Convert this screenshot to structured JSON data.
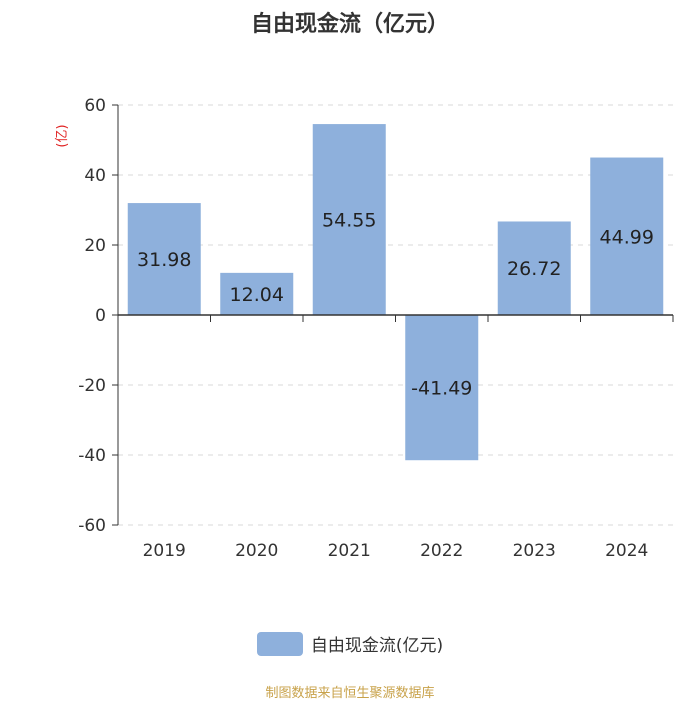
{
  "chart_data": {
    "type": "bar",
    "title": "自由现金流（亿元）",
    "ylabel": "(亿)",
    "categories": [
      "2019",
      "2020",
      "2021",
      "2022",
      "2023",
      "2024"
    ],
    "series": [
      {
        "name": "自由现金流(亿元)",
        "values": [
          31.98,
          12.04,
          54.55,
          -41.49,
          26.72,
          44.99
        ]
      }
    ],
    "data_labels": [
      "31.98",
      "12.04",
      "54.55",
      "-41.49",
      "26.72",
      "44.99"
    ],
    "ylim": [
      -60,
      60
    ],
    "yticks": [
      60,
      40,
      20,
      0,
      -20,
      -40,
      -60
    ],
    "ytick_labels": [
      "60",
      "40",
      "20",
      "0",
      "-20",
      "-40",
      "-60"
    ],
    "grid": true,
    "legend_position": "bottom",
    "bar_color": "#8eb0dc",
    "ylabel_color": "#e02020"
  },
  "source": "制图数据来自恒生聚源数据库"
}
